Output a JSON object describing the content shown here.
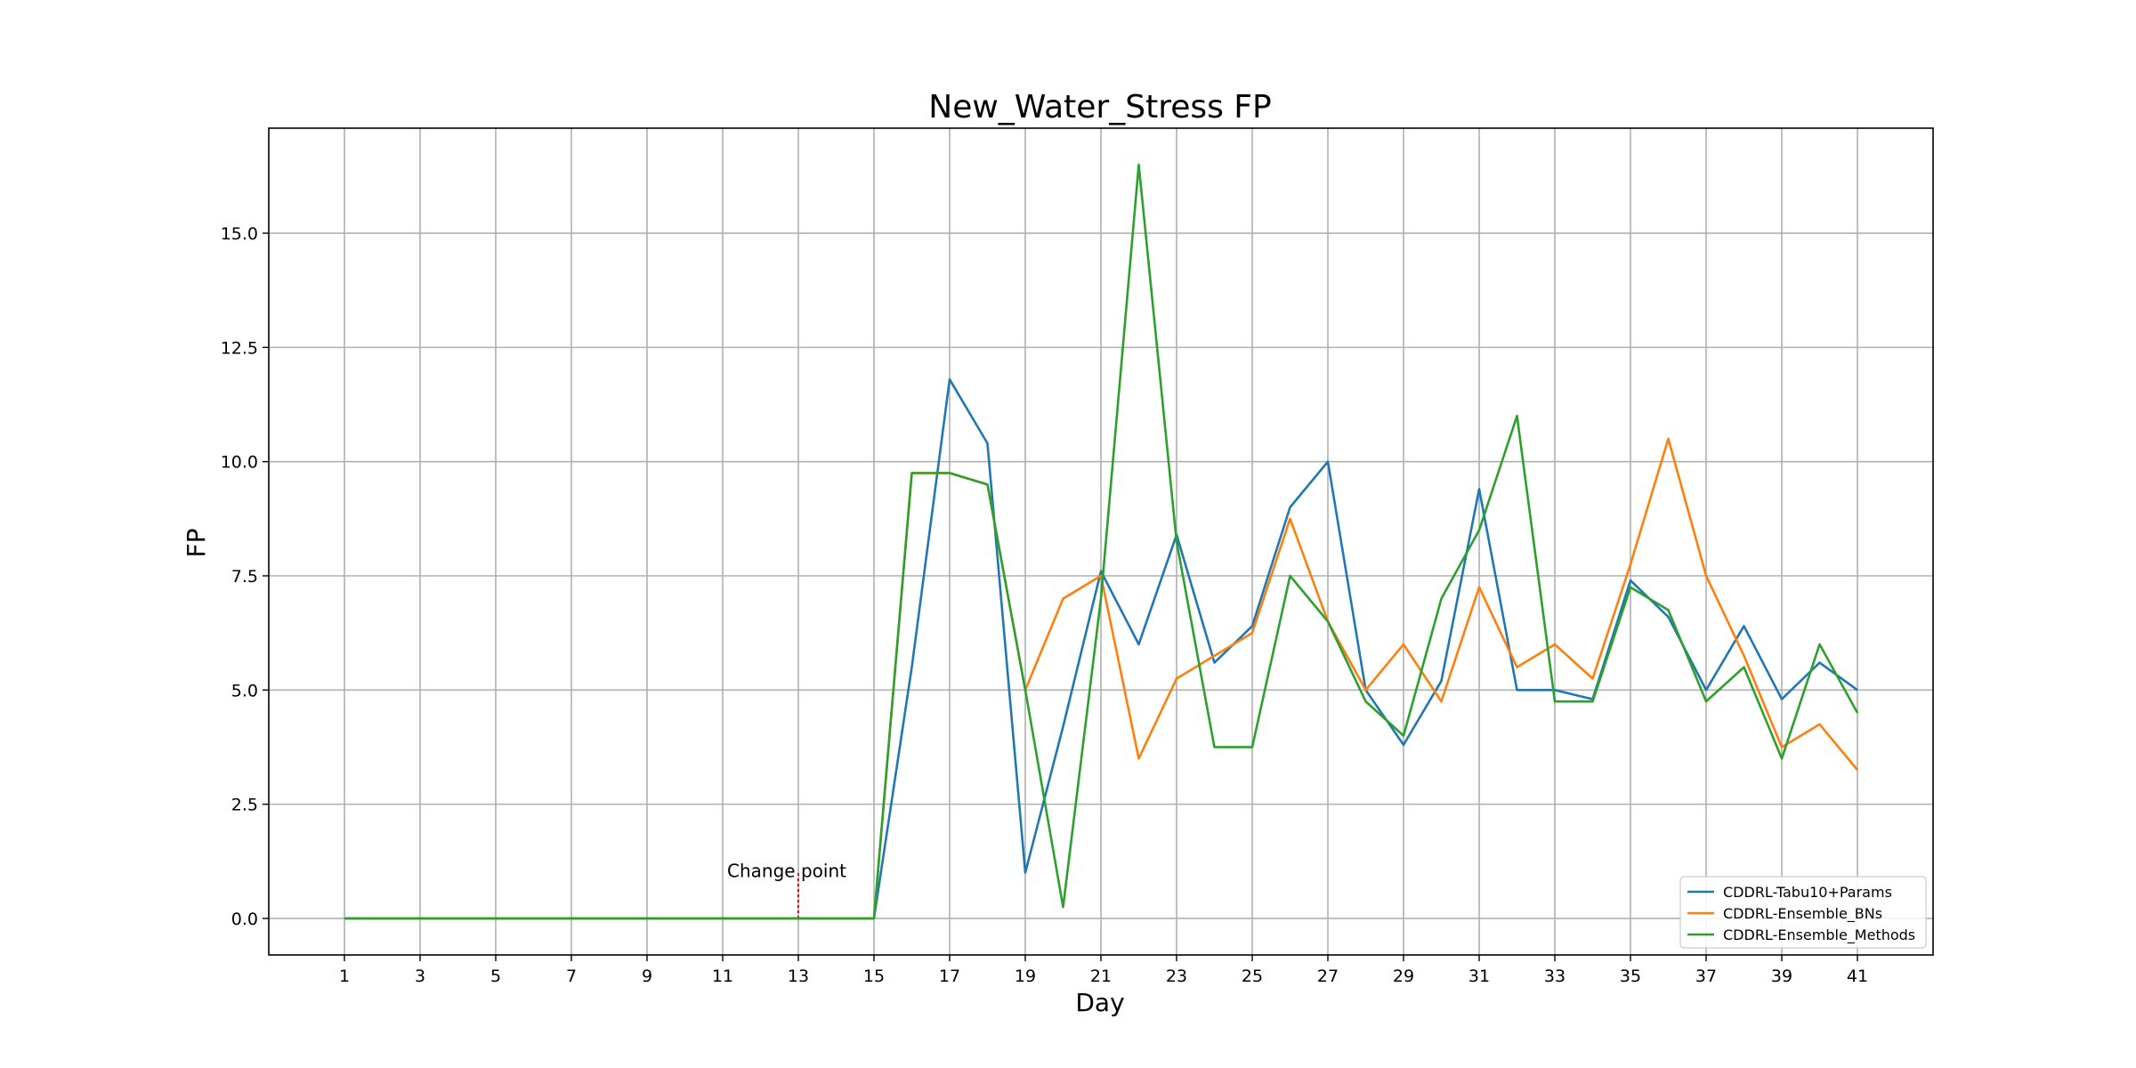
{
  "chart_data": {
    "type": "line",
    "title": "New_Water_Stress FP",
    "xlabel": "Day",
    "ylabel": "FP",
    "x": [
      1,
      2,
      3,
      4,
      5,
      6,
      7,
      8,
      9,
      10,
      11,
      12,
      13,
      14,
      15,
      16,
      17,
      18,
      19,
      20,
      21,
      22,
      23,
      24,
      25,
      26,
      27,
      28,
      29,
      30,
      31,
      32,
      33,
      34,
      35,
      36,
      37,
      38,
      39,
      40,
      41
    ],
    "x_ticks": [
      1,
      3,
      5,
      7,
      9,
      11,
      13,
      15,
      17,
      19,
      21,
      23,
      25,
      27,
      29,
      31,
      33,
      35,
      37,
      39,
      41
    ],
    "x_tick_labels": [
      "1",
      "3",
      "5",
      "7",
      "9",
      "11",
      "13",
      "15",
      "17",
      "19",
      "21",
      "23",
      "25",
      "27",
      "29",
      "31",
      "33",
      "35",
      "37",
      "39",
      "41"
    ],
    "xlim": [
      -1,
      43
    ],
    "ylim": [
      -0.8,
      17.3
    ],
    "y_ticks": [
      0,
      2.5,
      5,
      7.5,
      10,
      12.5,
      15
    ],
    "y_tick_labels": [
      "0.0",
      "2.5",
      "5.0",
      "7.5",
      "10.0",
      "12.5",
      "15.0"
    ],
    "grid": true,
    "legend_position": "bottom-right",
    "series": [
      {
        "name": "CDDRL-Tabu10+Params",
        "color": "#1f77b4",
        "values": [
          0,
          0,
          0,
          0,
          0,
          0,
          0,
          0,
          0,
          0,
          0,
          0,
          0,
          0,
          0,
          5.5,
          11.8,
          10.4,
          1.0,
          4.2,
          7.6,
          6.0,
          8.4,
          5.6,
          6.4,
          9.0,
          10.0,
          5.0,
          3.8,
          5.2,
          9.4,
          5.0,
          5.0,
          4.8,
          7.4,
          6.6,
          5.0,
          6.4,
          4.8,
          5.6,
          5.0
        ]
      },
      {
        "name": "CDDRL-Ensemble_BNs",
        "color": "#ff7f0e",
        "values": [
          0,
          0,
          0,
          0,
          0,
          0,
          0,
          0,
          0,
          0,
          0,
          0,
          0,
          0,
          0,
          9.75,
          9.75,
          9.5,
          5.0,
          7.0,
          7.5,
          3.5,
          5.25,
          5.75,
          6.25,
          8.75,
          6.5,
          5.0,
          6.0,
          4.75,
          7.25,
          5.5,
          6.0,
          5.25,
          7.75,
          10.5,
          7.5,
          5.75,
          3.75,
          4.25,
          3.25
        ]
      },
      {
        "name": "CDDRL-Ensemble_Methods",
        "color": "#2ca02c",
        "values": [
          0,
          0,
          0,
          0,
          0,
          0,
          0,
          0,
          0,
          0,
          0,
          0,
          0,
          0,
          0,
          9.75,
          9.75,
          9.5,
          5.0,
          0.25,
          7.0,
          16.5,
          8.25,
          3.75,
          3.75,
          7.5,
          6.5,
          4.75,
          4.0,
          7.0,
          8.5,
          11.0,
          4.75,
          4.75,
          7.25,
          6.75,
          4.75,
          5.5,
          3.5,
          6.0,
          4.5
        ]
      }
    ],
    "annotations": [
      {
        "text": "Change point",
        "x": 13,
        "y_top": 1.0,
        "color": "#ff0000",
        "style": "dotted"
      }
    ]
  }
}
